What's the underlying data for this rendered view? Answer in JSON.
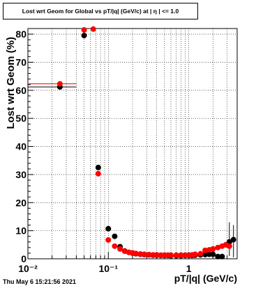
{
  "chart_data": {
    "type": "scatter",
    "title": "Lost wrt Geom for Global vs pT/|q| (GeV/c) at | η | <= 1.0",
    "xlabel": "pT/|q| (GeV/c)",
    "ylabel": "Lost wrt Geom (%)",
    "x_scale": "log",
    "xlim": [
      0.01,
      4.0
    ],
    "ylim": [
      0,
      82
    ],
    "grid": true,
    "x_tick_labels": [
      "10⁻²",
      "10⁻¹",
      "1"
    ],
    "y_ticks": [
      0,
      10,
      20,
      30,
      40,
      50,
      60,
      70,
      80
    ],
    "series": [
      {
        "color": "#000000",
        "x": [
          0.025,
          0.05,
          0.075,
          0.1,
          0.12,
          0.14,
          0.16,
          0.18,
          0.2,
          0.22,
          0.25,
          0.28,
          0.32,
          0.36,
          0.4,
          0.45,
          0.5,
          0.55,
          0.6,
          0.7,
          0.8,
          0.9,
          1.0,
          1.1,
          1.2,
          1.4,
          1.6,
          1.8,
          2.0,
          2.3,
          2.6,
          2.9,
          3.2,
          3.6
        ],
        "y": [
          61.2,
          79.5,
          32.5,
          10.7,
          8.0,
          4.3,
          2.8,
          2.3,
          2.0,
          1.8,
          1.6,
          1.5,
          1.4,
          1.3,
          1.3,
          1.2,
          1.2,
          1.2,
          1.1,
          1.1,
          1.1,
          1.2,
          1.2,
          1.2,
          1.3,
          1.4,
          1.5,
          1.6,
          1.6,
          0.8,
          0.8,
          5.0,
          6.0,
          6.8
        ]
      },
      {
        "color": "#ff0000",
        "x": [
          0.025,
          0.05,
          0.065,
          0.075,
          0.1,
          0.12,
          0.14,
          0.16,
          0.18,
          0.2,
          0.22,
          0.25,
          0.28,
          0.32,
          0.36,
          0.4,
          0.45,
          0.5,
          0.55,
          0.6,
          0.7,
          0.8,
          0.9,
          1.0,
          1.1,
          1.2,
          1.4,
          1.6,
          1.8,
          2.0,
          2.3,
          2.6,
          2.9,
          3.2
        ],
        "y": [
          62.3,
          81.5,
          81.8,
          30.3,
          6.7,
          4.5,
          3.5,
          2.7,
          2.3,
          2.1,
          1.9,
          1.7,
          1.6,
          1.5,
          1.4,
          1.4,
          1.3,
          1.3,
          1.3,
          1.3,
          1.3,
          1.3,
          1.3,
          1.3,
          1.4,
          1.6,
          1.8,
          3.0,
          3.2,
          3.5,
          4.0,
          4.5,
          5.0,
          4.5
        ]
      }
    ]
  },
  "title_box": "Lost wrt Geom for Global vs pT/|q| (GeV/c) at | η | <= 1.0",
  "footer": "Thu May  6 15:21:56 2021",
  "colors": {
    "series_black": "#000000",
    "series_red": "#ff0000",
    "frame": "#000000",
    "background": "#ffffff"
  }
}
